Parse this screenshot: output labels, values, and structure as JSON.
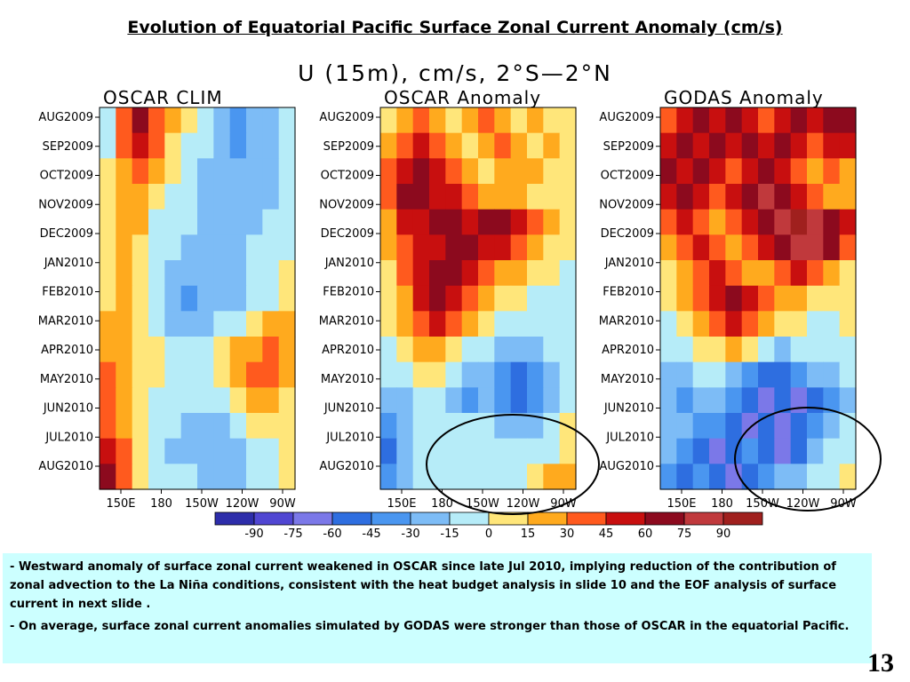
{
  "slide": {
    "title": "Evolution of Equatorial Pacific Surface Zonal Current Anomaly (cm/s)",
    "page_number": "13"
  },
  "figure_header": "U (15m), cm/s, 2°S—2°N",
  "notes": [
    {
      "marker": "-",
      "text": "Westward anomaly of surface zonal current weakened in OSCAR since late Jul 2010, implying reduction of the contribution of zonal advection to the La Niña conditions, consistent with the heat budget analysis in slide 10 and the EOF analysis of surface current in next slide ."
    },
    {
      "marker": "-",
      "text": "On average, surface zonal current anomalies simulated by GODAS were  stronger than those of OSCAR in the equatorial Pacific."
    }
  ],
  "chart_data": [
    {
      "type": "heatmap",
      "title": "OSCAR CLIM",
      "x_ticks": [
        "150E",
        "180",
        "150W",
        "120W",
        "90W"
      ],
      "y_ticks": [
        "AUG2009",
        "SEP2009",
        "OCT2009",
        "NOV2009",
        "DEC2009",
        "JAN2010",
        "FEB2010",
        "MAR2010",
        "APR2010",
        "MAY2010",
        "JUN2010",
        "JUL2010",
        "AUG2010"
      ],
      "approx_grid": [
        [
          -15,
          30,
          60,
          30,
          15,
          0,
          -15,
          -30,
          -45,
          -30,
          -30,
          -15
        ],
        [
          -15,
          30,
          45,
          30,
          0,
          -15,
          -15,
          -30,
          -45,
          -30,
          -30,
          -15
        ],
        [
          0,
          15,
          30,
          15,
          0,
          -15,
          -30,
          -30,
          -30,
          -30,
          -30,
          -15
        ],
        [
          0,
          15,
          15,
          0,
          -15,
          -15,
          -30,
          -30,
          -30,
          -30,
          -30,
          -15
        ],
        [
          0,
          15,
          15,
          -15,
          -15,
          -15,
          -30,
          -30,
          -30,
          -30,
          -15,
          -15
        ],
        [
          0,
          15,
          0,
          -15,
          -15,
          -30,
          -30,
          -30,
          -30,
          -15,
          -15,
          -15
        ],
        [
          0,
          15,
          0,
          -15,
          -30,
          -30,
          -30,
          -30,
          -30,
          -15,
          -15,
          0
        ],
        [
          0,
          15,
          0,
          -15,
          -30,
          -45,
          -30,
          -30,
          -30,
          -15,
          -15,
          0
        ],
        [
          15,
          15,
          0,
          -15,
          -30,
          -30,
          -30,
          -15,
          -15,
          0,
          15,
          15
        ],
        [
          15,
          15,
          0,
          0,
          -15,
          -15,
          -15,
          0,
          15,
          15,
          30,
          15
        ],
        [
          30,
          15,
          0,
          0,
          -15,
          -15,
          -15,
          0,
          15,
          30,
          30,
          15
        ],
        [
          30,
          15,
          0,
          -15,
          -15,
          -15,
          -15,
          -15,
          0,
          15,
          15,
          0
        ],
        [
          30,
          15,
          0,
          -15,
          -15,
          -30,
          -30,
          -30,
          -15,
          0,
          0,
          0
        ],
        [
          45,
          30,
          0,
          -15,
          -30,
          -30,
          -30,
          -30,
          -30,
          -15,
          -15,
          0
        ],
        [
          60,
          30,
          0,
          -15,
          -15,
          -15,
          -30,
          -30,
          -30,
          -15,
          -15,
          0
        ]
      ]
    },
    {
      "type": "heatmap",
      "title": "OSCAR Anomaly",
      "x_ticks": [
        "150E",
        "180",
        "150W",
        "120W",
        "90W"
      ],
      "y_ticks": [
        "AUG2009",
        "SEP2009",
        "OCT2009",
        "NOV2009",
        "DEC2009",
        "JAN2010",
        "FEB2010",
        "MAR2010",
        "APR2010",
        "MAY2010",
        "JUN2010",
        "JUL2010",
        "AUG2010"
      ],
      "approx_grid": [
        [
          0,
          15,
          30,
          15,
          0,
          15,
          30,
          15,
          0,
          15,
          0,
          0
        ],
        [
          15,
          30,
          45,
          30,
          15,
          0,
          15,
          30,
          15,
          0,
          15,
          0
        ],
        [
          30,
          45,
          60,
          45,
          30,
          15,
          0,
          15,
          15,
          15,
          0,
          0
        ],
        [
          30,
          60,
          60,
          45,
          45,
          30,
          15,
          15,
          15,
          0,
          0,
          0
        ],
        [
          15,
          45,
          45,
          60,
          60,
          45,
          60,
          60,
          45,
          30,
          15,
          0
        ],
        [
          15,
          30,
          45,
          45,
          60,
          60,
          45,
          45,
          30,
          15,
          0,
          0
        ],
        [
          0,
          30,
          45,
          60,
          60,
          45,
          30,
          15,
          15,
          0,
          0,
          -15
        ],
        [
          0,
          15,
          45,
          60,
          45,
          30,
          15,
          0,
          0,
          -15,
          -15,
          -15
        ],
        [
          0,
          15,
          30,
          45,
          30,
          15,
          0,
          -15,
          -15,
          -15,
          -15,
          -15
        ],
        [
          -15,
          0,
          15,
          15,
          0,
          -15,
          -15,
          -30,
          -30,
          -30,
          -15,
          -15
        ],
        [
          -15,
          -15,
          0,
          0,
          -15,
          -30,
          -30,
          -45,
          -60,
          -45,
          -30,
          -15
        ],
        [
          -30,
          -30,
          -15,
          -15,
          -30,
          -45,
          -30,
          -45,
          -60,
          -45,
          -30,
          -15
        ],
        [
          -45,
          -30,
          -15,
          -15,
          -15,
          -15,
          -15,
          -30,
          -30,
          -30,
          -15,
          0
        ],
        [
          -60,
          -30,
          -15,
          -15,
          -15,
          -15,
          -15,
          -15,
          -15,
          -15,
          -15,
          0
        ],
        [
          -45,
          -30,
          -15,
          -15,
          -15,
          -15,
          -15,
          -15,
          -15,
          0,
          15,
          15
        ]
      ]
    },
    {
      "type": "heatmap",
      "title": "GODAS Anomaly",
      "x_ticks": [
        "150E",
        "180",
        "150W",
        "120W",
        "90W"
      ],
      "y_ticks": [
        "AUG2009",
        "SEP2009",
        "OCT2009",
        "NOV2009",
        "DEC2009",
        "JAN2010",
        "FEB2010",
        "MAR2010",
        "APR2010",
        "MAY2010",
        "JUN2010",
        "JUL2010",
        "AUG2010"
      ],
      "approx_grid": [
        [
          30,
          45,
          60,
          45,
          60,
          45,
          30,
          45,
          60,
          45,
          60,
          60
        ],
        [
          45,
          60,
          45,
          60,
          45,
          60,
          45,
          60,
          45,
          30,
          45,
          45
        ],
        [
          60,
          45,
          60,
          45,
          30,
          45,
          60,
          45,
          30,
          15,
          30,
          15
        ],
        [
          45,
          60,
          45,
          30,
          45,
          60,
          75,
          60,
          45,
          30,
          15,
          15
        ],
        [
          30,
          45,
          30,
          15,
          30,
          45,
          60,
          75,
          90,
          75,
          60,
          45
        ],
        [
          15,
          30,
          45,
          30,
          15,
          30,
          45,
          60,
          75,
          75,
          60,
          30
        ],
        [
          0,
          15,
          30,
          45,
          30,
          15,
          15,
          30,
          45,
          30,
          15,
          0
        ],
        [
          0,
          15,
          30,
          45,
          60,
          45,
          30,
          15,
          15,
          0,
          0,
          0
        ],
        [
          -15,
          0,
          15,
          30,
          45,
          30,
          15,
          0,
          0,
          -15,
          -15,
          0
        ],
        [
          -15,
          -15,
          0,
          0,
          15,
          0,
          -15,
          -30,
          -15,
          -15,
          -15,
          -15
        ],
        [
          -30,
          -30,
          -15,
          -15,
          -30,
          -45,
          -60,
          -60,
          -45,
          -30,
          -30,
          -15
        ],
        [
          -30,
          -45,
          -30,
          -30,
          -45,
          -60,
          -75,
          -60,
          -75,
          -60,
          -45,
          -30
        ],
        [
          -30,
          -30,
          -45,
          -45,
          -60,
          -75,
          -60,
          -75,
          -60,
          -45,
          -30,
          -15
        ],
        [
          -30,
          -45,
          -60,
          -75,
          -60,
          -45,
          -60,
          -75,
          -60,
          -30,
          -15,
          -15
        ],
        [
          -45,
          -60,
          -45,
          -60,
          -75,
          -60,
          -45,
          -30,
          -30,
          -15,
          -15,
          0
        ]
      ]
    }
  ],
  "colorbar": {
    "labels": [
      "-90",
      "-75",
      "-60",
      "-45",
      "-30",
      "-15",
      "0",
      "15",
      "30",
      "45",
      "60",
      "75",
      "90"
    ],
    "colors": [
      "#2d2daa",
      "#5046d2",
      "#7b78e8",
      "#2e6ee0",
      "#4a96f0",
      "#7dbcf6",
      "#b6ecf8",
      "#ffe67a",
      "#ffaa1e",
      "#ff5a1e",
      "#c80f0f",
      "#8c0a1e",
      "#c0393c",
      "#a0201e"
    ]
  },
  "annotations": {
    "highlight_circles": 2
  }
}
